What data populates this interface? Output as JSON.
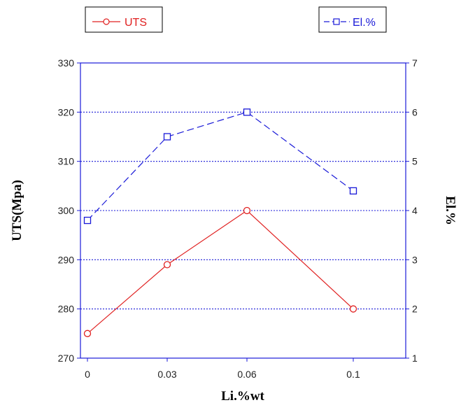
{
  "chart_data": {
    "type": "line",
    "categories": [
      "0",
      "0.03",
      "0.06",
      "0.1"
    ],
    "series": [
      {
        "name": "UTS",
        "axis": "left",
        "values": [
          275,
          289,
          300,
          280
        ],
        "color": "#e02020",
        "marker": "circle",
        "line_style": "solid"
      },
      {
        "name": "El.%",
        "axis": "right",
        "values": [
          3.8,
          5.5,
          6.0,
          4.4
        ],
        "color": "#1a1ad8",
        "marker": "square",
        "line_style": "dashed"
      }
    ],
    "xlabel": "Li.%wt",
    "ylabel_left": "UTS(Mpa)",
    "ylabel_right": "El.%",
    "ylim_left": [
      270,
      330
    ],
    "ylim_right": [
      1,
      7
    ],
    "yticks_left": [
      "270",
      "280",
      "290",
      "300",
      "310",
      "320",
      "330"
    ],
    "yticks_right": [
      "1",
      "2",
      "3",
      "4",
      "5",
      "6",
      "7"
    ],
    "grid": "horizontal dotted",
    "axis_color": "#1a1ad8",
    "legend_placement": "top"
  }
}
